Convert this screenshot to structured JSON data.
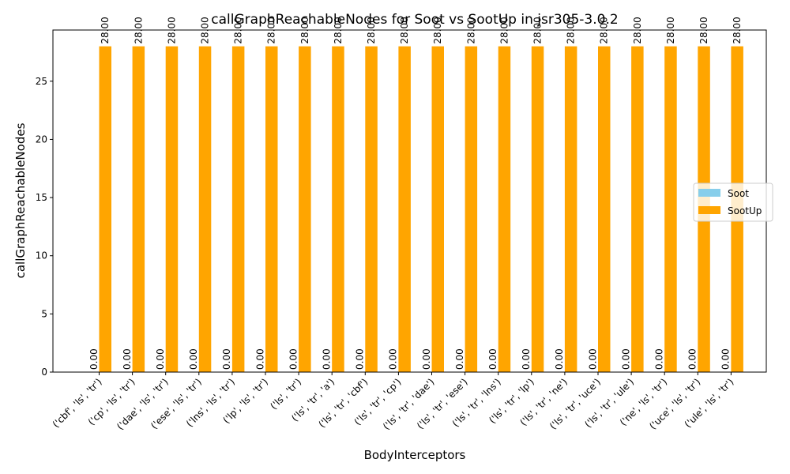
{
  "chart_data": {
    "type": "bar",
    "title": "callGraphReachableNodes for Soot vs SootUp in jsr305-3.0.2",
    "xlabel": "BodyInterceptors",
    "ylabel": "callGraphReachableNodes",
    "ylim": [
      0,
      29.4
    ],
    "yticks": [
      0,
      5,
      10,
      15,
      20,
      25
    ],
    "categories": [
      "('cbf', 'ls', 'tr')",
      "('cp', 'ls', 'tr')",
      "('dae', 'ls', 'tr')",
      "('ese', 'ls', 'tr')",
      "('lns', 'ls', 'tr')",
      "('lp', 'ls', 'tr')",
      "('ls', 'tr')",
      "('ls', 'tr', 'a')",
      "('ls', 'tr', 'cbf')",
      "('ls', 'tr', 'cp')",
      "('ls', 'tr', 'dae')",
      "('ls', 'tr', 'ese')",
      "('ls', 'tr', 'lns')",
      "('ls', 'tr', 'lp')",
      "('ls', 'tr', 'ne')",
      "('ls', 'tr', 'uce')",
      "('ls', 'tr', 'ule')",
      "('ne', 'ls', 'tr')",
      "('uce', 'ls', 'tr')",
      "('ule', 'ls', 'tr')"
    ],
    "series": [
      {
        "name": "Soot",
        "color": "#87ceeb",
        "values": [
          0,
          0,
          0,
          0,
          0,
          0,
          0,
          0,
          0,
          0,
          0,
          0,
          0,
          0,
          0,
          0,
          0,
          0,
          0,
          0
        ]
      },
      {
        "name": "SootUp",
        "color": "#ffa500",
        "values": [
          28,
          28,
          28,
          28,
          28,
          28,
          28,
          28,
          28,
          28,
          28,
          28,
          28,
          28,
          28,
          28,
          28,
          28,
          28,
          28
        ]
      }
    ],
    "legend_position": "center-right",
    "grid": false
  }
}
